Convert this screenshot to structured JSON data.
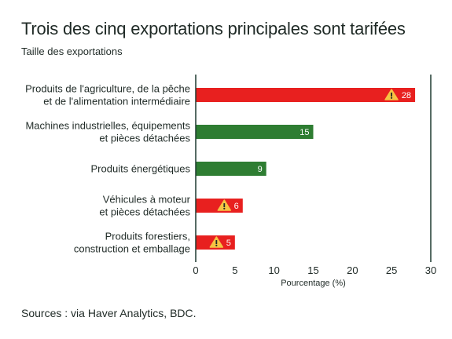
{
  "header": {
    "title": "Trois des cinq exportations principales sont tarifées",
    "subtitle": "Taille des exportations"
  },
  "footer": {
    "source": "Sources : via Haver Analytics, BDC."
  },
  "colors": {
    "tariffed": "#e8201f",
    "untariffed": "#2e7d32",
    "axis": "#1e3a30",
    "warning": "#f6c343"
  },
  "chart_data": {
    "type": "bar",
    "orientation": "horizontal",
    "title": "Trois des cinq exportations principales sont tarifées",
    "subtitle": "Taille des exportations",
    "xlabel": "Pourcentage (%)",
    "ylabel": "",
    "xlim": [
      0,
      30
    ],
    "xticks": [
      0,
      5,
      10,
      15,
      20,
      25,
      30
    ],
    "grid": false,
    "categories": [
      [
        "Produits de l'agriculture, de la pêche",
        "et de l'alimentation intermédiaire"
      ],
      [
        "Machines industrielles, équipements",
        "et pièces détachées"
      ],
      [
        "Produits énergétiques"
      ],
      [
        "Véhicules à moteur",
        "et pièces détachées"
      ],
      [
        "Produits forestiers,",
        "construction et emballage"
      ]
    ],
    "values": [
      28,
      15,
      9,
      6,
      5
    ],
    "tariffed": [
      true,
      false,
      false,
      true,
      true
    ],
    "warning_icon": "warning-triangle-icon"
  }
}
